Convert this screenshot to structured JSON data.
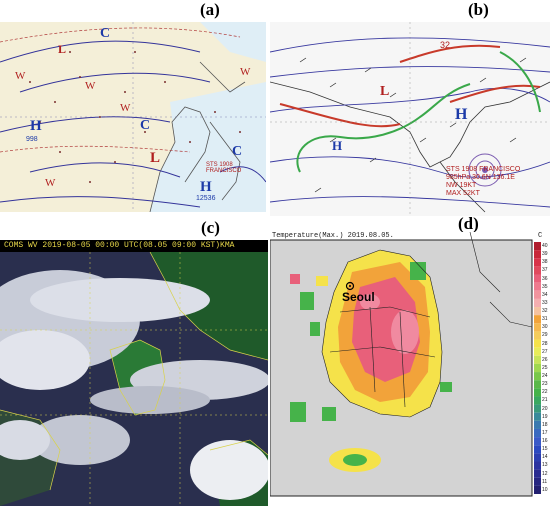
{
  "labels": {
    "a": "(a)",
    "b": "(b)",
    "c": "(c)",
    "d": "(d)"
  },
  "panel_a": {
    "high_markers": [
      "H",
      "H"
    ],
    "low_markers": [
      "L",
      "L",
      "C",
      "C",
      "C"
    ],
    "warm_markers": [
      "W",
      "W",
      "W",
      "W",
      "W"
    ],
    "pressure_1": "998",
    "pressure_2": "12536",
    "typhoon_note": "STS 1908 FRANCISCO"
  },
  "panel_b": {
    "high_markers": [
      "H",
      "H"
    ],
    "low_markers": [
      "L"
    ],
    "typhoon_lines": [
      "STS 1908 FRANCISCO",
      "985hPa 30.6N 136.1E",
      "NW 19KT",
      "MAX 52KT"
    ],
    "isobar_label": "32"
  },
  "panel_c": {
    "header": "COMS WV 2019-08-05 00:00 UTC(08.05 09:00 KST)KMA"
  },
  "panel_d": {
    "title": "Temperature(Max.) 2019.08.05.",
    "unit": "C",
    "city": "Seoul",
    "scale": [
      "40",
      "39",
      "38",
      "37",
      "36",
      "35",
      "34",
      "33",
      "32",
      "31",
      "30",
      "29",
      "28",
      "27",
      "26",
      "25",
      "24",
      "23",
      "22",
      "21",
      "20",
      "19",
      "18",
      "17",
      "16",
      "15",
      "14",
      "13",
      "12",
      "11",
      "10"
    ],
    "colors": {
      "hot": "#e8607a",
      "warm": "#f2a33a",
      "mild": "#f5e24a",
      "cool": "#46b34a",
      "cold": "#2c3fb0"
    }
  }
}
